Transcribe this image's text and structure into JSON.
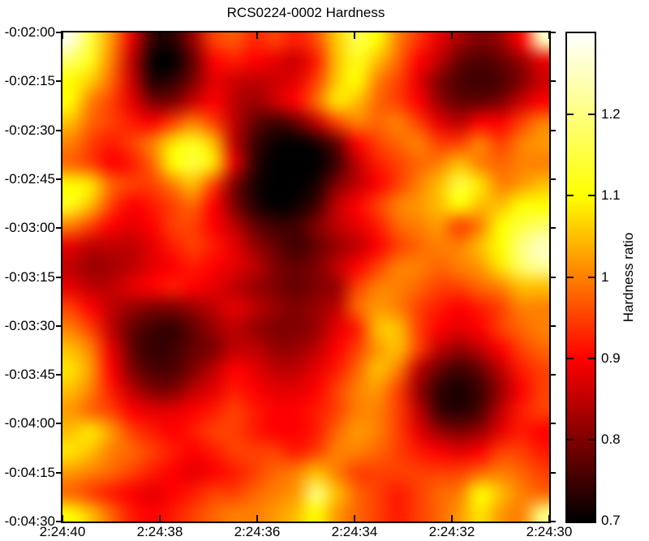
{
  "title": "RCS0224-0002 Hardness",
  "axes": {
    "x_ticks": [
      "2:24:40",
      "2:24:38",
      "2:24:36",
      "2:24:34",
      "2:24:32",
      "2:24:30"
    ],
    "y_ticks": [
      "-0:02:00",
      "-0:02:15",
      "-0:02:30",
      "-0:02:45",
      "-0:03:00",
      "-0:03:15",
      "-0:03:30",
      "-0:03:45",
      "-0:04:00",
      "-0:04:15",
      "-0:04:30"
    ]
  },
  "colorbar": {
    "label": "Hardness ratio",
    "tick_labels": [
      "0.7",
      "0.8",
      "0.9",
      "1",
      "1.1",
      "1.2"
    ],
    "tick_values": [
      0.7,
      0.8,
      0.9,
      1.0,
      1.1,
      1.2
    ],
    "range": [
      0.7,
      1.3
    ],
    "colormap": "hot",
    "color_stops": {
      "0.7": "#000000",
      "0.8": "#800000",
      "0.9": "#ff0000",
      "1.0": "#ff8000",
      "1.1": "#ffff00",
      "1.2": "#ffff80",
      "1.3": "#ffffff"
    }
  },
  "chart_data": {
    "type": "heatmap",
    "title": "RCS0224-0002 Hardness",
    "x_axis": "right ascension (h:m:s), decreasing left to right",
    "y_axis": "declination (d:m:s), decreasing top to bottom",
    "x_range": [
      "2:24:40",
      "2:24:30"
    ],
    "y_range": [
      "-0:02:00",
      "-0:04:30"
    ],
    "colorbar_label": "Hardness ratio",
    "value_range": [
      0.7,
      1.3
    ],
    "colormap": "hot",
    "grid_rows": 24,
    "grid_cols": 24,
    "values": [
      [
        1.28,
        1.15,
        1.02,
        0.88,
        0.74,
        0.73,
        0.82,
        0.95,
        0.97,
        0.93,
        0.95,
        0.92,
        0.96,
        1.06,
        1.16,
        1.1,
        1.0,
        0.94,
        0.88,
        0.83,
        0.8,
        0.82,
        0.9,
        1.25
      ],
      [
        1.18,
        1.12,
        1.0,
        0.85,
        0.71,
        0.7,
        0.78,
        0.9,
        0.92,
        0.9,
        0.88,
        0.86,
        0.92,
        1.05,
        1.12,
        1.05,
        0.98,
        0.9,
        0.85,
        0.78,
        0.76,
        0.78,
        0.82,
        0.88
      ],
      [
        1.1,
        1.06,
        0.98,
        0.86,
        0.73,
        0.74,
        0.8,
        0.88,
        0.86,
        0.85,
        0.86,
        0.88,
        0.95,
        1.06,
        1.1,
        1.0,
        0.95,
        0.88,
        0.8,
        0.76,
        0.75,
        0.76,
        0.8,
        0.86
      ],
      [
        1.1,
        1.0,
        0.95,
        0.88,
        0.8,
        0.8,
        0.86,
        0.9,
        0.85,
        0.82,
        0.86,
        0.9,
        0.98,
        1.08,
        1.05,
        0.98,
        0.95,
        0.9,
        0.82,
        0.78,
        0.78,
        0.8,
        0.86,
        0.9
      ],
      [
        1.05,
        0.98,
        0.95,
        0.92,
        0.9,
        0.95,
        1.0,
        0.95,
        0.85,
        0.78,
        0.75,
        0.78,
        0.85,
        0.95,
        1.0,
        0.98,
        1.0,
        0.95,
        0.88,
        0.85,
        0.9,
        0.9,
        0.95,
        1.0
      ],
      [
        1.0,
        0.95,
        0.92,
        0.95,
        1.0,
        1.08,
        1.12,
        1.05,
        0.85,
        0.75,
        0.71,
        0.7,
        0.72,
        0.78,
        0.9,
        0.95,
        0.98,
        1.0,
        0.95,
        0.95,
        1.0,
        0.95,
        1.0,
        1.02
      ],
      [
        0.98,
        0.95,
        0.9,
        0.92,
        0.98,
        1.1,
        1.15,
        1.08,
        0.88,
        0.74,
        0.7,
        0.7,
        0.7,
        0.75,
        0.85,
        0.92,
        0.95,
        0.98,
        1.0,
        1.05,
        1.0,
        0.98,
        1.0,
        1.0
      ],
      [
        1.1,
        1.08,
        0.98,
        0.95,
        0.95,
        1.0,
        1.05,
        0.95,
        0.8,
        0.72,
        0.7,
        0.7,
        0.72,
        0.8,
        0.85,
        0.9,
        0.95,
        1.0,
        1.05,
        1.15,
        1.08,
        1.0,
        1.02,
        1.05
      ],
      [
        1.12,
        1.05,
        0.95,
        0.9,
        0.92,
        0.95,
        0.98,
        0.9,
        0.8,
        0.73,
        0.7,
        0.71,
        0.75,
        0.85,
        0.9,
        0.95,
        1.0,
        1.02,
        1.05,
        1.1,
        1.05,
        1.05,
        1.1,
        1.1
      ],
      [
        1.0,
        0.95,
        0.9,
        0.88,
        0.9,
        0.95,
        0.95,
        0.9,
        0.85,
        0.78,
        0.75,
        0.75,
        0.8,
        0.85,
        0.88,
        0.92,
        0.98,
        1.0,
        1.02,
        0.95,
        1.0,
        1.1,
        1.15,
        1.18
      ],
      [
        0.88,
        0.85,
        0.85,
        0.85,
        0.88,
        0.92,
        0.95,
        0.92,
        0.88,
        0.82,
        0.78,
        0.75,
        0.78,
        0.82,
        0.85,
        0.9,
        0.95,
        0.98,
        1.0,
        1.0,
        1.05,
        1.1,
        1.2,
        1.25
      ],
      [
        0.85,
        0.82,
        0.83,
        0.85,
        0.88,
        0.9,
        0.92,
        0.9,
        0.88,
        0.85,
        0.8,
        0.78,
        0.8,
        0.85,
        0.9,
        0.95,
        1.0,
        1.0,
        0.98,
        1.0,
        1.02,
        1.08,
        1.18,
        1.22
      ],
      [
        0.88,
        0.85,
        0.85,
        0.88,
        0.9,
        0.92,
        0.9,
        0.88,
        0.85,
        0.82,
        0.8,
        0.78,
        0.8,
        0.82,
        0.95,
        1.0,
        1.0,
        0.98,
        0.95,
        0.95,
        0.98,
        1.0,
        1.05,
        1.05
      ],
      [
        0.95,
        0.9,
        0.85,
        0.82,
        0.8,
        0.8,
        0.82,
        0.85,
        0.88,
        0.85,
        0.82,
        0.8,
        0.82,
        0.85,
        0.98,
        1.02,
        1.0,
        0.95,
        0.92,
        0.9,
        0.92,
        0.95,
        1.0,
        1.0
      ],
      [
        1.0,
        0.95,
        0.85,
        0.78,
        0.75,
        0.74,
        0.78,
        0.82,
        0.85,
        0.82,
        0.8,
        0.8,
        0.82,
        0.88,
        0.92,
        1.05,
        1.05,
        0.95,
        0.9,
        0.88,
        0.9,
        0.95,
        0.98,
        1.0
      ],
      [
        1.05,
        1.0,
        0.88,
        0.78,
        0.74,
        0.75,
        0.78,
        0.8,
        0.85,
        0.85,
        0.82,
        0.82,
        0.85,
        0.9,
        0.95,
        1.02,
        1.05,
        0.95,
        0.85,
        0.82,
        0.85,
        0.9,
        0.95,
        0.98
      ],
      [
        1.08,
        1.02,
        0.9,
        0.8,
        0.76,
        0.76,
        0.8,
        0.85,
        0.9,
        0.88,
        0.85,
        0.85,
        0.88,
        0.92,
        0.98,
        1.05,
        1.0,
        0.85,
        0.78,
        0.75,
        0.78,
        0.85,
        0.92,
        0.95
      ],
      [
        1.05,
        1.0,
        0.92,
        0.85,
        0.8,
        0.8,
        0.85,
        0.88,
        0.92,
        0.9,
        0.88,
        0.88,
        0.9,
        0.95,
        1.0,
        1.02,
        0.95,
        0.82,
        0.74,
        0.72,
        0.75,
        0.82,
        0.9,
        0.95
      ],
      [
        1.02,
        0.98,
        0.95,
        0.9,
        0.88,
        0.88,
        0.9,
        0.92,
        0.95,
        0.92,
        0.9,
        0.9,
        0.92,
        0.95,
        1.0,
        1.0,
        0.95,
        0.85,
        0.75,
        0.73,
        0.76,
        0.85,
        0.92,
        0.95
      ],
      [
        1.05,
        1.08,
        1.02,
        0.95,
        0.92,
        0.9,
        0.92,
        0.95,
        0.95,
        0.92,
        0.9,
        0.9,
        0.92,
        0.98,
        1.02,
        1.0,
        0.95,
        0.88,
        0.82,
        0.8,
        0.82,
        0.88,
        0.92,
        0.9
      ],
      [
        1.08,
        1.05,
        1.0,
        0.98,
        0.95,
        0.92,
        0.9,
        0.92,
        0.95,
        0.95,
        0.95,
        0.92,
        0.95,
        1.0,
        1.0,
        0.98,
        0.95,
        0.92,
        0.9,
        0.88,
        0.9,
        0.95,
        0.95,
        0.92
      ],
      [
        1.02,
        1.0,
        0.98,
        0.95,
        0.92,
        0.9,
        0.88,
        0.9,
        0.92,
        0.95,
        0.98,
        1.0,
        1.05,
        1.0,
        0.95,
        0.95,
        0.95,
        0.95,
        0.95,
        0.95,
        0.98,
        1.0,
        0.98,
        0.95
      ],
      [
        0.98,
        0.95,
        0.92,
        0.9,
        0.88,
        0.9,
        0.92,
        0.95,
        0.95,
        0.98,
        1.0,
        1.02,
        1.2,
        1.05,
        0.98,
        0.95,
        0.92,
        0.95,
        0.98,
        1.0,
        1.1,
        1.05,
        1.0,
        0.98
      ],
      [
        1.1,
        1.05,
        0.98,
        0.92,
        0.9,
        0.92,
        0.95,
        0.98,
        1.0,
        1.0,
        1.02,
        1.05,
        1.1,
        1.02,
        0.98,
        0.95,
        0.92,
        0.95,
        0.98,
        1.02,
        1.08,
        1.02,
        1.0,
        1.2
      ]
    ]
  }
}
